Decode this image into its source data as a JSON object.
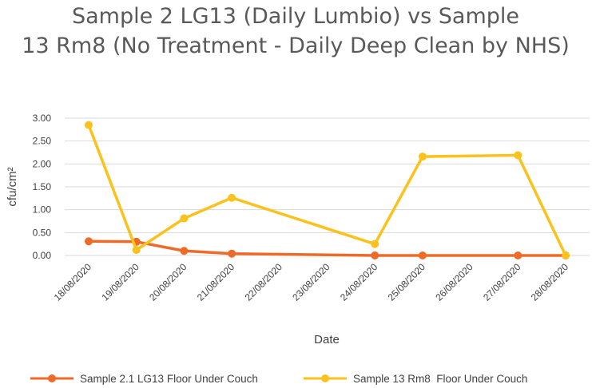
{
  "chart_data": {
    "type": "line",
    "title_line1": "Sample 2 LG13 (Daily Lumbio) vs Sample",
    "title_line2": "13 Rm8 (No Treatment - Daily Deep Clean by NHS)",
    "xlabel": "Date",
    "ylabel": "cfu/cm²",
    "ylim": [
      0,
      3
    ],
    "yticks": [
      "0.00",
      "0.50",
      "1.00",
      "1.50",
      "2.00",
      "2.50",
      "3.00"
    ],
    "categories": [
      "18/08/2020",
      "19/08/2020",
      "20/08/2020",
      "21/08/2020",
      "22/08/2020",
      "23/08/2020",
      "24/08/2020",
      "25/08/2020",
      "26/08/2020",
      "27/08/2020",
      "28/08/2020"
    ],
    "grid": true,
    "legend_position": "bottom",
    "series": [
      {
        "name": "Sample 2.1 LG13 Floor Under Couch",
        "color": "#ed6a29",
        "points": [
          {
            "x": "18/08/2020",
            "y": 0.31
          },
          {
            "x": "19/08/2020",
            "y": 0.3
          },
          {
            "x": "20/08/2020",
            "y": 0.1
          },
          {
            "x": "21/08/2020",
            "y": 0.04
          },
          {
            "x": "24/08/2020",
            "y": 0.0
          },
          {
            "x": "25/08/2020",
            "y": 0.0
          },
          {
            "x": "27/08/2020",
            "y": 0.0
          },
          {
            "x": "28/08/2020",
            "y": 0.0
          }
        ]
      },
      {
        "name": "Sample 13 Rm8  Floor Under Couch",
        "color": "#fbc21d",
        "points": [
          {
            "x": "18/08/2020",
            "y": 2.85
          },
          {
            "x": "19/08/2020",
            "y": 0.12
          },
          {
            "x": "20/08/2020",
            "y": 0.81
          },
          {
            "x": "21/08/2020",
            "y": 1.26
          },
          {
            "x": "24/08/2020",
            "y": 0.25
          },
          {
            "x": "25/08/2020",
            "y": 2.16
          },
          {
            "x": "27/08/2020",
            "y": 2.19
          },
          {
            "x": "28/08/2020",
            "y": 0.0
          }
        ]
      }
    ]
  }
}
